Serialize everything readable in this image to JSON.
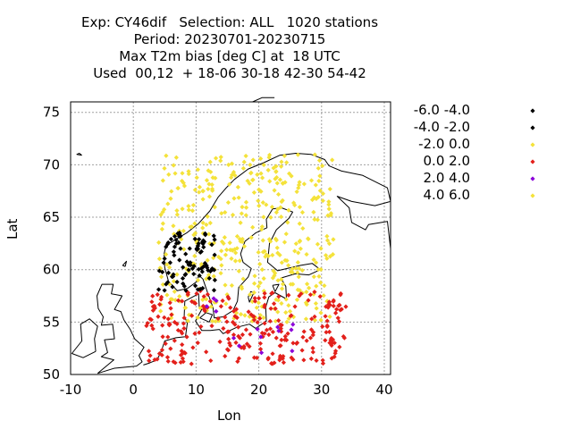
{
  "title_lines": [
    "Exp: CY46dif   Selection: ALL   1020 stations",
    "Period: 20230701-20230715",
    "Max T2m bias [deg C] at  18 UTC",
    "Used  00,12  + 18-06 30-18 42-30 54-42"
  ],
  "chart_data": {
    "type": "scatter",
    "title": "Max T2m bias [deg C] at  18 UTC",
    "xlabel": "Lon",
    "ylabel": "Lat",
    "xlim": [
      -10,
      41
    ],
    "ylim": [
      50,
      76
    ],
    "x_ticks": [
      -10,
      0,
      10,
      20,
      30,
      40
    ],
    "y_ticks": [
      50,
      55,
      60,
      65,
      70,
      75
    ],
    "x_tick_labels": [
      "-10",
      "0",
      "10",
      "20",
      "30",
      "40"
    ],
    "y_tick_labels": [
      "50",
      "55",
      "60",
      "65",
      "70",
      "75"
    ],
    "grid": true,
    "legend_position": "right",
    "legend": [
      {
        "label": "-6.0 -4.0",
        "color": "#000000"
      },
      {
        "label": "-4.0 -2.0",
        "color": "#000000"
      },
      {
        "label": "-2.0 0.0",
        "color": "#f4e23a"
      },
      {
        "label": "0.0 2.0",
        "color": "#e3201b"
      },
      {
        "label": "2.0 4.0",
        "color": "#8b00d9"
      },
      {
        "label": "4.0 6.0",
        "color": "#f4e23a"
      }
    ],
    "regions": [
      {
        "color": "#f4e23a",
        "count": 420,
        "lon": [
          4,
          32
        ],
        "lat": [
          55,
          71
        ]
      },
      {
        "color": "#e3201b",
        "count": 260,
        "lon": [
          2,
          34
        ],
        "lat": [
          51,
          58
        ]
      },
      {
        "color": "#000000",
        "count": 90,
        "lon": [
          4,
          13
        ],
        "lat": [
          58,
          64
        ]
      },
      {
        "color": "#8b00d9",
        "count": 14,
        "lon": [
          11,
          27
        ],
        "lat": [
          52,
          58
        ]
      }
    ]
  },
  "colors": {
    "coast": "#000000",
    "grid": "#a0a0a0",
    "yellow": "#f4e23a",
    "red": "#e3201b",
    "black": "#000000",
    "purple": "#8b00d9"
  }
}
